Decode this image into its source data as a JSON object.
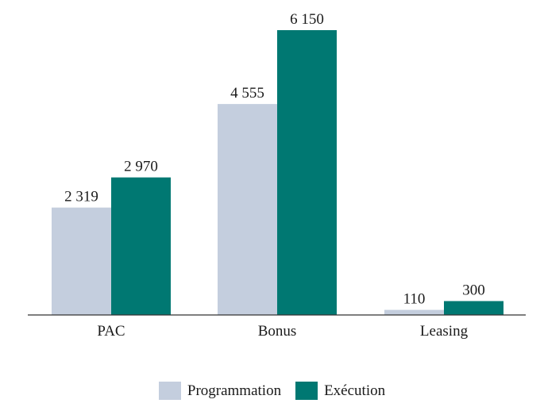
{
  "chart_data": {
    "type": "bar",
    "categories": [
      "PAC",
      "Bonus",
      "Leasing"
    ],
    "series": [
      {
        "name": "Programmation",
        "color": "#c4cede",
        "values": [
          2319,
          4555,
          110
        ],
        "labels": [
          "2 319",
          "4 555",
          "110"
        ]
      },
      {
        "name": "Exécution",
        "color": "#007872",
        "values": [
          2970,
          6150,
          300
        ],
        "labels": [
          "2 970",
          "6 150",
          "300"
        ]
      }
    ],
    "title": "",
    "xlabel": "",
    "ylabel": "",
    "ylim": [
      0,
      6150
    ],
    "grid": false,
    "legend": "bottom"
  }
}
